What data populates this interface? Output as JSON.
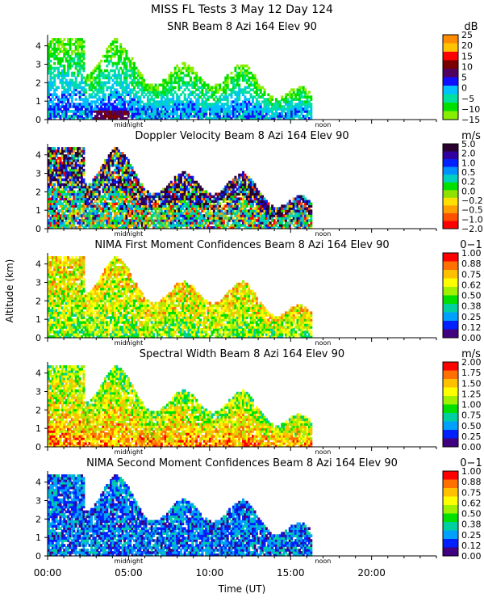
{
  "figure": {
    "title": "MISS FL Tests   3 May 12 Day 124",
    "xlabel": "Time (UT)",
    "ylabel": "Altitude (km)",
    "x_tick_labels": [
      "00:00",
      "05:00",
      "10:00",
      "15:00",
      "20:00"
    ],
    "y_tick_labels": [
      "0",
      "1",
      "2",
      "3",
      "4"
    ],
    "marker_midnight": "midnight",
    "marker_noon": "noon"
  },
  "chart_data": [
    {
      "type": "heatmap",
      "title": "SNR Beam 8 Azi 164 Elev 90",
      "units": "dB",
      "x_range_hours": [
        0,
        24
      ],
      "data_extent_hours": [
        0,
        16.3
      ],
      "ylim_km": [
        0,
        4.6
      ],
      "colorbar_ticks": [
        "25",
        "20",
        "15",
        "10",
        "5",
        "0",
        "−5",
        "−10",
        "−15"
      ],
      "colors": [
        "#ff8c00",
        "#ffc400",
        "#ff0000",
        "#7a0000",
        "#500060",
        "#1010ff",
        "#00c0ff",
        "#00e0a0",
        "#00e000",
        "#88ee00"
      ],
      "field": "snr"
    },
    {
      "type": "heatmap",
      "title": "Doppler Velocity Beam 8 Azi 164 Elev 90",
      "units": "m/s",
      "x_range_hours": [
        0,
        24
      ],
      "data_extent_hours": [
        0,
        16.3
      ],
      "ylim_km": [
        0,
        4.6
      ],
      "colorbar_ticks": [
        "5.0",
        "2.0",
        "1.0",
        "0.5",
        "0.2",
        "0.0",
        "−0.2",
        "−0.5",
        "−1.0",
        "−2.0"
      ],
      "colors": [
        "#2a0030",
        "#3000a0",
        "#0020ff",
        "#0090ff",
        "#00d0c0",
        "#00e000",
        "#90e000",
        "#ffe000",
        "#ffa000",
        "#ff5000",
        "#ff0000"
      ],
      "field": "vel"
    },
    {
      "type": "heatmap",
      "title": "NIMA First Moment Confidences Beam 8 Azi 164 Elev 90",
      "units": "0−1",
      "x_range_hours": [
        0,
        24
      ],
      "data_extent_hours": [
        0,
        16.3
      ],
      "ylim_km": [
        0,
        4.6
      ],
      "colorbar_ticks": [
        "1.00",
        "0.88",
        "0.75",
        "0.62",
        "0.50",
        "0.38",
        "0.25",
        "0.12",
        "0.00"
      ],
      "colors": [
        "#ff0000",
        "#ff7000",
        "#ffc000",
        "#ffff00",
        "#a0f000",
        "#00e000",
        "#00d0a0",
        "#00a0ff",
        "#0020ff",
        "#400080"
      ],
      "field": "conf1"
    },
    {
      "type": "heatmap",
      "title": "Spectral Width Beam 8 Azi 164 Elev 90",
      "units": "m/s",
      "x_range_hours": [
        0,
        24
      ],
      "data_extent_hours": [
        0,
        16.3
      ],
      "ylim_km": [
        0,
        4.6
      ],
      "colorbar_ticks": [
        "2.00",
        "1.75",
        "1.50",
        "1.25",
        "1.00",
        "0.75",
        "0.50",
        "0.25",
        "0.00"
      ],
      "colors": [
        "#ff0000",
        "#ff7000",
        "#ffc000",
        "#ffff00",
        "#a0f000",
        "#00e000",
        "#00d0a0",
        "#00a0ff",
        "#0020ff",
        "#400080"
      ],
      "field": "width"
    },
    {
      "type": "heatmap",
      "title": "NIMA Second Moment Confidences Beam 8 Azi 164 Elev 90",
      "units": "0−1",
      "x_range_hours": [
        0,
        24
      ],
      "data_extent_hours": [
        0,
        16.3
      ],
      "ylim_km": [
        0,
        4.6
      ],
      "colorbar_ticks": [
        "1.00",
        "0.88",
        "0.75",
        "0.62",
        "0.50",
        "0.38",
        "0.25",
        "0.12",
        "0.00"
      ],
      "colors": [
        "#ff0000",
        "#ff7000",
        "#ffc000",
        "#ffff00",
        "#a0f000",
        "#00e000",
        "#00d0a0",
        "#00a0ff",
        "#0020ff",
        "#400080"
      ],
      "field": "conf2"
    }
  ]
}
